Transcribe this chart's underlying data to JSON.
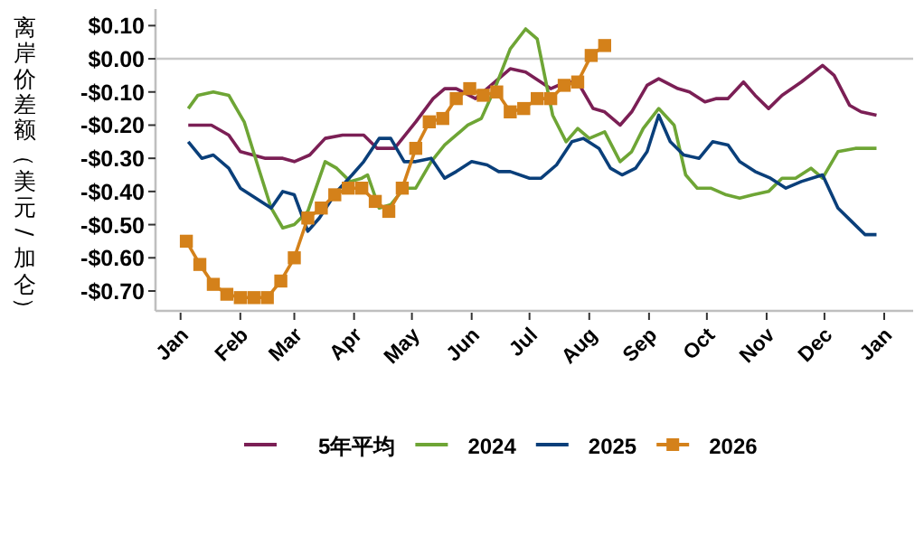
{
  "chart_data": {
    "type": "line",
    "ylabel": "离岸价差额（美元/加仑）",
    "xlim": [
      "2024-12-19",
      "2026-01-16"
    ],
    "ylim": [
      -0.76,
      0.15
    ],
    "xticks": [
      {
        "value": "2025-01-01",
        "label": "Jan"
      },
      {
        "value": "2025-02-01",
        "label": "Feb"
      },
      {
        "value": "2025-03-01",
        "label": "Mar"
      },
      {
        "value": "2025-04-01",
        "label": "Apr"
      },
      {
        "value": "2025-05-01",
        "label": "May"
      },
      {
        "value": "2025-06-01",
        "label": "Jun"
      },
      {
        "value": "2025-07-01",
        "label": "Jul"
      },
      {
        "value": "2025-08-01",
        "label": "Aug"
      },
      {
        "value": "2025-09-01",
        "label": "Sep"
      },
      {
        "value": "2025-10-01",
        "label": "Oct"
      },
      {
        "value": "2025-11-01",
        "label": "Nov"
      },
      {
        "value": "2025-12-01",
        "label": "Dec"
      },
      {
        "value": "2026-01-01",
        "label": "Jan"
      }
    ],
    "yticks": [
      {
        "value": 0.1,
        "label": "$0.10"
      },
      {
        "value": 0,
        "label": "$0.00"
      },
      {
        "value": -0.1,
        "label": "-$0.10"
      },
      {
        "value": -0.2,
        "label": "-$0.20"
      },
      {
        "value": -0.3,
        "label": "-$0.30"
      },
      {
        "value": -0.4,
        "label": "-$0.40"
      },
      {
        "value": -0.5,
        "label": "-$0.50"
      },
      {
        "value": -0.6,
        "label": "-$0.60"
      },
      {
        "value": -0.7,
        "label": "-$0.70"
      }
    ],
    "ref_lines": [
      {
        "axis": "y",
        "value": 0,
        "color": "#c8c8c8"
      }
    ],
    "legend": "bottom",
    "grid": false,
    "series": [
      {
        "name": "5年平均",
        "color": "#7b1f55",
        "marker": "none",
        "x": [
          "2025-01-05",
          "2025-01-17",
          "2025-01-26",
          "2025-02-01",
          "2025-02-14",
          "2025-02-23",
          "2025-03-01",
          "2025-03-09",
          "2025-03-17",
          "2025-03-26",
          "2025-04-06",
          "2025-04-13",
          "2025-04-22",
          "2025-05-03",
          "2025-05-12",
          "2025-05-18",
          "2025-05-24",
          "2025-06-03",
          "2025-06-21",
          "2025-06-29",
          "2025-07-12",
          "2025-07-20",
          "2025-07-26",
          "2025-08-03",
          "2025-08-09",
          "2025-08-17",
          "2025-08-23",
          "2025-08-31",
          "2025-09-06",
          "2025-09-16",
          "2025-09-22",
          "2025-09-30",
          "2025-10-06",
          "2025-10-12",
          "2025-10-20",
          "2025-10-26",
          "2025-11-02",
          "2025-11-09",
          "2025-11-19",
          "2025-11-30",
          "2025-12-06",
          "2025-12-14",
          "2025-12-20",
          "2025-12-28"
        ],
        "values": [
          -0.2,
          -0.2,
          -0.23,
          -0.28,
          -0.3,
          -0.3,
          -0.31,
          -0.29,
          -0.24,
          -0.23,
          -0.23,
          -0.27,
          -0.27,
          -0.19,
          -0.12,
          -0.09,
          -0.09,
          -0.12,
          -0.03,
          -0.04,
          -0.09,
          -0.07,
          -0.07,
          -0.15,
          -0.16,
          -0.2,
          -0.16,
          -0.08,
          -0.06,
          -0.09,
          -0.1,
          -0.13,
          -0.12,
          -0.12,
          -0.07,
          -0.11,
          -0.15,
          -0.11,
          -0.07,
          -0.02,
          -0.05,
          -0.14,
          -0.16,
          -0.17
        ]
      },
      {
        "name": "2024",
        "color": "#6ea535",
        "marker": "none",
        "x": [
          "2025-01-05",
          "2025-01-10",
          "2025-01-18",
          "2025-01-26",
          "2025-02-03",
          "2025-02-11",
          "2025-02-17",
          "2025-02-23",
          "2025-03-01",
          "2025-03-08",
          "2025-03-17",
          "2025-03-23",
          "2025-03-30",
          "2025-04-05",
          "2025-04-08",
          "2025-04-14",
          "2025-04-20",
          "2025-04-27",
          "2025-05-03",
          "2025-05-11",
          "2025-05-18",
          "2025-05-24",
          "2025-05-30",
          "2025-06-06",
          "2025-06-13",
          "2025-06-21",
          "2025-06-29",
          "2025-07-05",
          "2025-07-13",
          "2025-07-20",
          "2025-07-26",
          "2025-08-01",
          "2025-08-09",
          "2025-08-17",
          "2025-08-23",
          "2025-08-29",
          "2025-09-06",
          "2025-09-14",
          "2025-09-20",
          "2025-09-26",
          "2025-10-03",
          "2025-10-11",
          "2025-10-18",
          "2025-10-25",
          "2025-11-02",
          "2025-11-09",
          "2025-11-16",
          "2025-11-24",
          "2025-11-30",
          "2025-12-08",
          "2025-12-17",
          "2025-12-28"
        ],
        "values": [
          -0.15,
          -0.11,
          -0.1,
          -0.11,
          -0.19,
          -0.34,
          -0.45,
          -0.51,
          -0.5,
          -0.46,
          -0.31,
          -0.33,
          -0.37,
          -0.36,
          -0.35,
          -0.45,
          -0.44,
          -0.39,
          -0.39,
          -0.31,
          -0.26,
          -0.23,
          -0.2,
          -0.18,
          -0.09,
          0.03,
          0.09,
          0.06,
          -0.17,
          -0.25,
          -0.21,
          -0.24,
          -0.22,
          -0.31,
          -0.28,
          -0.21,
          -0.15,
          -0.2,
          -0.35,
          -0.39,
          -0.39,
          -0.41,
          -0.42,
          -0.41,
          -0.4,
          -0.36,
          -0.36,
          -0.33,
          -0.36,
          -0.28,
          -0.27,
          -0.27
        ]
      },
      {
        "name": "2025",
        "color": "#0a3f7a",
        "marker": "none",
        "x": [
          "2025-01-05",
          "2025-01-12",
          "2025-01-18",
          "2025-01-26",
          "2025-02-01",
          "2025-02-09",
          "2025-02-17",
          "2025-02-23",
          "2025-03-01",
          "2025-03-08",
          "2025-03-14",
          "2025-03-23",
          "2025-03-31",
          "2025-04-06",
          "2025-04-14",
          "2025-04-20",
          "2025-04-27",
          "2025-05-03",
          "2025-05-11",
          "2025-05-18",
          "2025-05-24",
          "2025-06-01",
          "2025-06-09",
          "2025-06-15",
          "2025-06-21",
          "2025-07-01",
          "2025-07-07",
          "2025-07-15",
          "2025-07-23",
          "2025-07-29",
          "2025-08-06",
          "2025-08-12",
          "2025-08-18",
          "2025-08-25",
          "2025-08-31",
          "2025-09-06",
          "2025-09-12",
          "2025-09-19",
          "2025-09-27",
          "2025-10-04",
          "2025-10-12",
          "2025-10-18",
          "2025-10-26",
          "2025-11-03",
          "2025-11-11",
          "2025-11-19",
          "2025-11-30",
          "2025-12-08",
          "2025-12-15",
          "2025-12-22",
          "2025-12-28"
        ],
        "values": [
          -0.25,
          -0.3,
          -0.29,
          -0.33,
          -0.39,
          -0.42,
          -0.45,
          -0.4,
          -0.41,
          -0.52,
          -0.48,
          -0.4,
          -0.35,
          -0.31,
          -0.24,
          -0.24,
          -0.31,
          -0.31,
          -0.3,
          -0.36,
          -0.34,
          -0.31,
          -0.32,
          -0.34,
          -0.34,
          -0.36,
          -0.36,
          -0.32,
          -0.25,
          -0.24,
          -0.27,
          -0.33,
          -0.35,
          -0.33,
          -0.28,
          -0.17,
          -0.25,
          -0.29,
          -0.3,
          -0.25,
          -0.26,
          -0.31,
          -0.34,
          -0.36,
          -0.39,
          -0.37,
          -0.35,
          -0.45,
          -0.49,
          -0.53,
          -0.53
        ]
      },
      {
        "name": "2026",
        "color": "#d4811a",
        "marker": "square",
        "x": [
          "2025-01-04",
          "2025-01-11",
          "2025-01-18",
          "2025-01-25",
          "2025-02-01",
          "2025-02-08",
          "2025-02-15",
          "2025-02-22",
          "2025-03-01",
          "2025-03-08",
          "2025-03-15",
          "2025-03-22",
          "2025-03-29",
          "2025-04-05",
          "2025-04-12",
          "2025-04-19",
          "2025-04-26",
          "2025-05-03",
          "2025-05-10",
          "2025-05-17",
          "2025-05-24",
          "2025-05-31",
          "2025-06-07",
          "2025-06-14",
          "2025-06-21",
          "2025-06-28",
          "2025-07-05",
          "2025-07-12",
          "2025-07-19",
          "2025-07-26",
          "2025-08-02",
          "2025-08-09"
        ],
        "values": [
          -0.55,
          -0.62,
          -0.68,
          -0.71,
          -0.72,
          -0.72,
          -0.72,
          -0.67,
          -0.6,
          -0.48,
          -0.45,
          -0.41,
          -0.39,
          -0.39,
          -0.43,
          -0.46,
          -0.39,
          -0.27,
          -0.19,
          -0.18,
          -0.12,
          -0.09,
          -0.11,
          -0.1,
          -0.16,
          -0.15,
          -0.12,
          -0.12,
          -0.08,
          -0.07,
          0.01,
          0.04
        ]
      }
    ]
  }
}
